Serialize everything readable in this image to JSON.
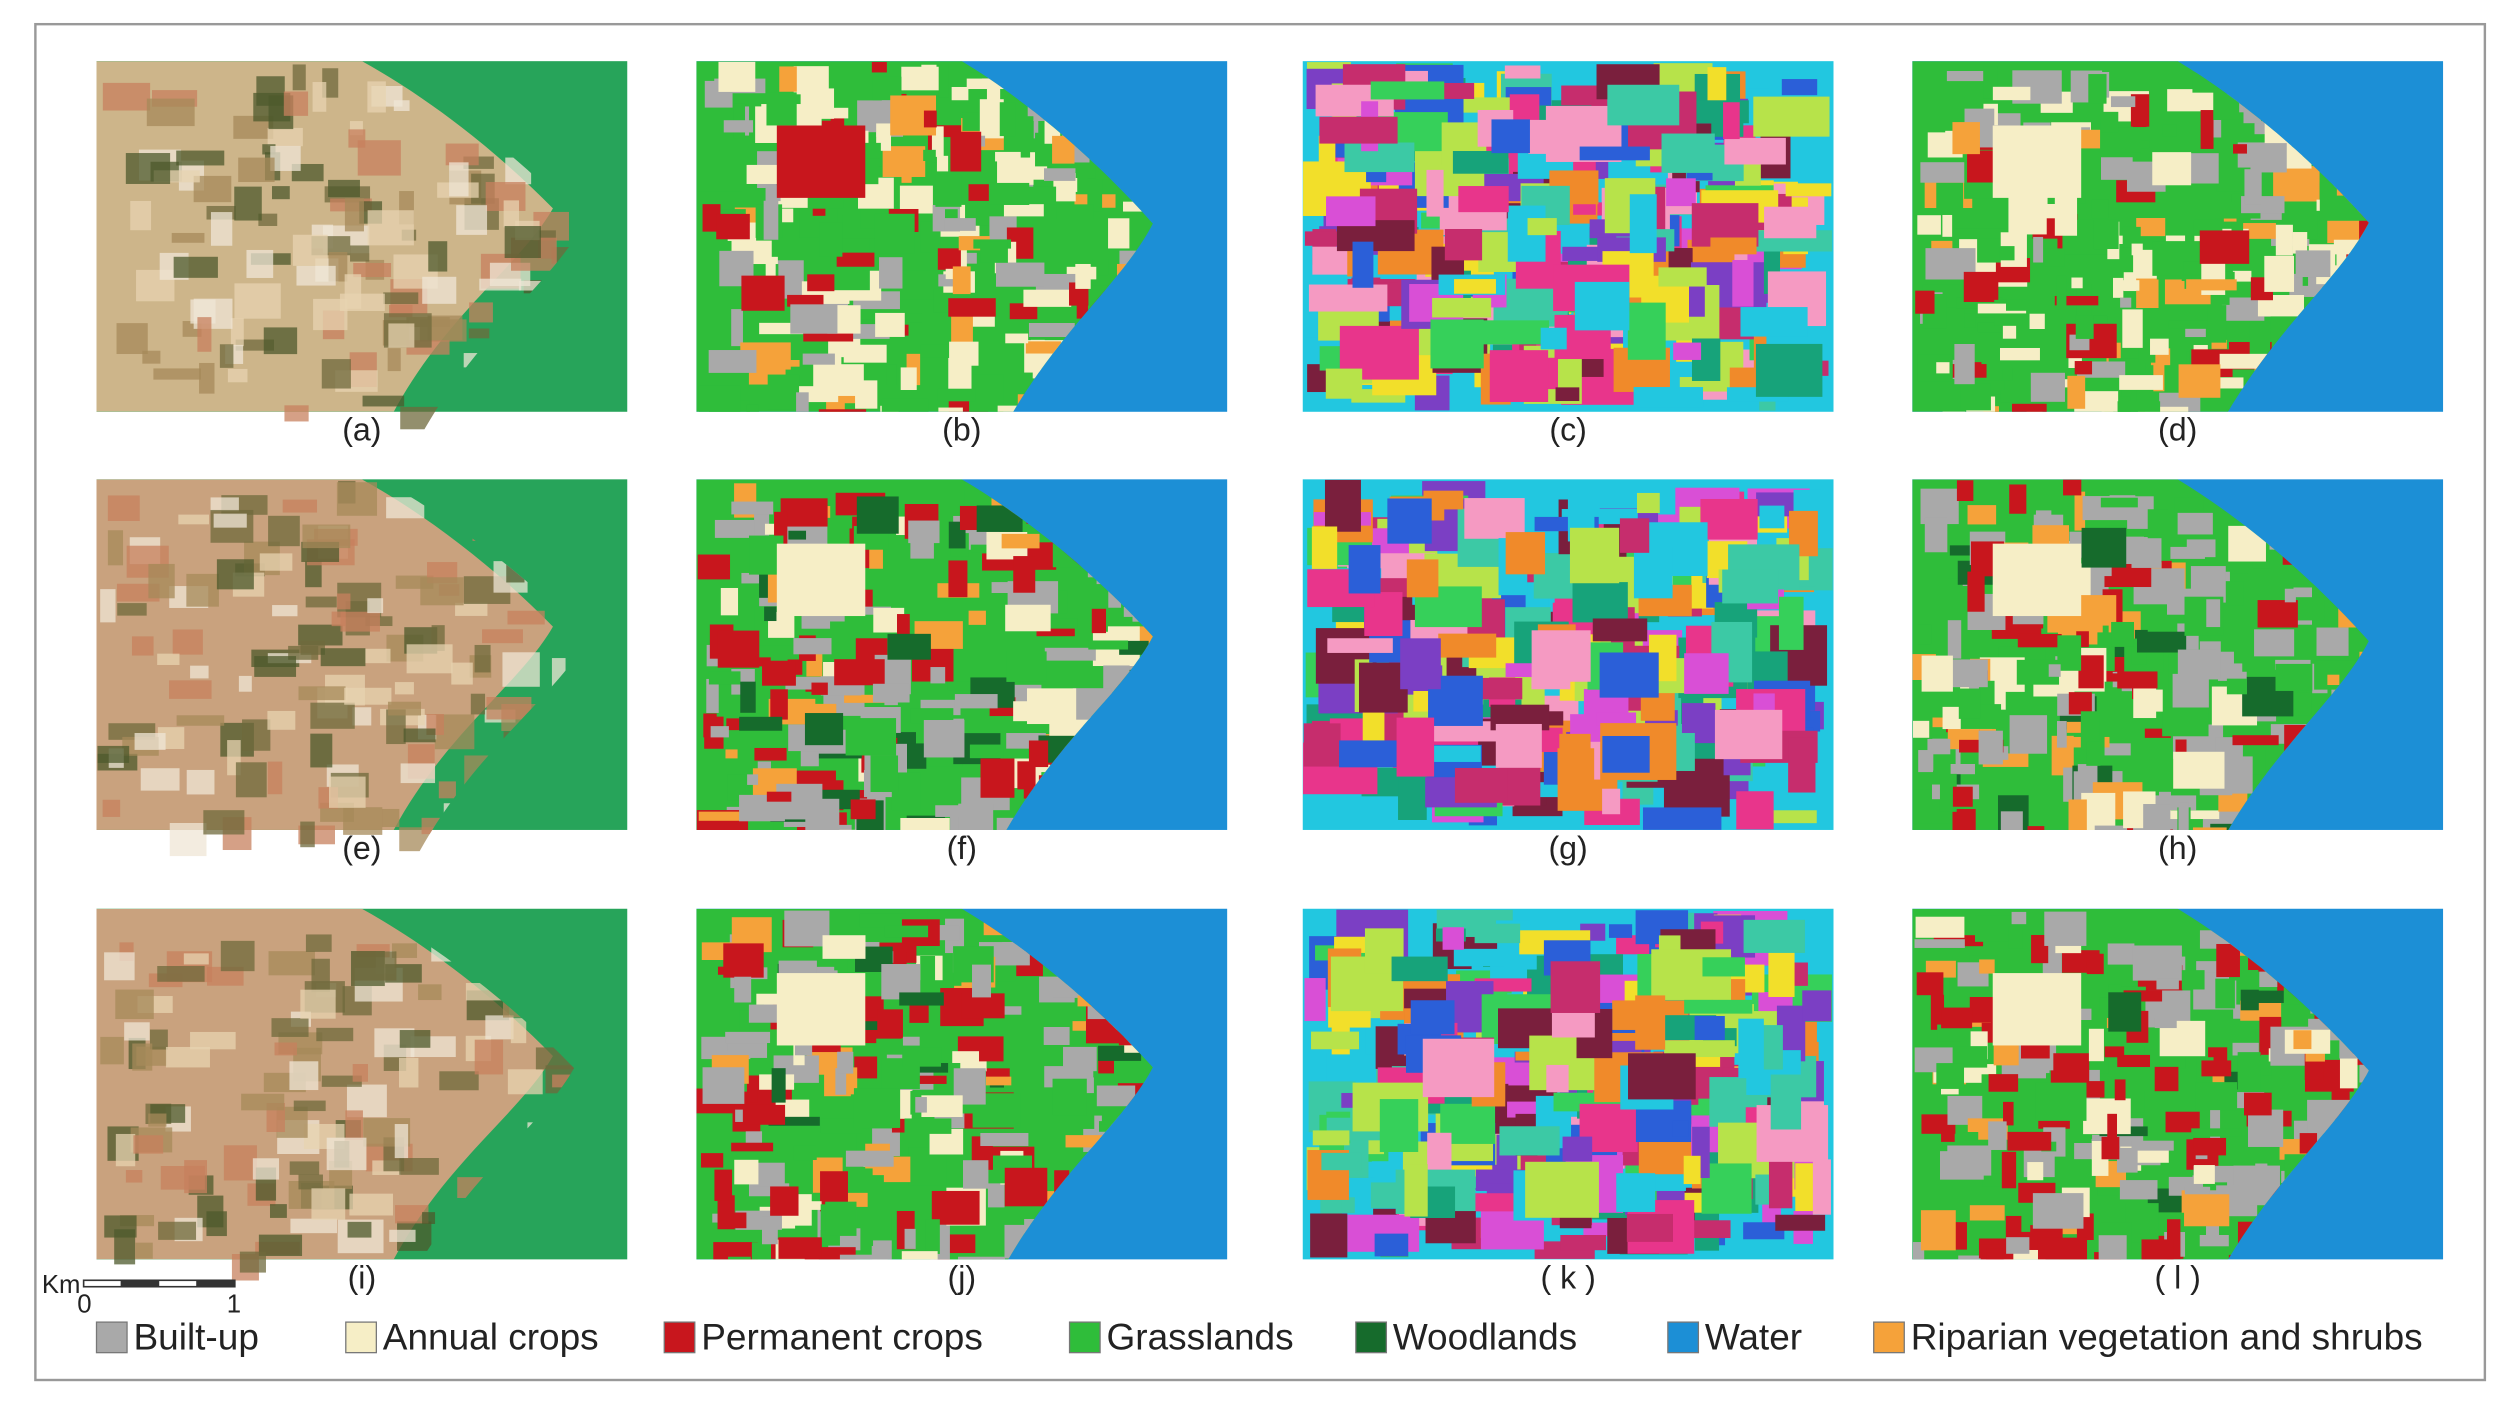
{
  "panels": [
    {
      "label": "(a)"
    },
    {
      "label": "(b)"
    },
    {
      "label": "(c)"
    },
    {
      "label": "(d)"
    },
    {
      "label": "(e)"
    },
    {
      "label": "(f)"
    },
    {
      "label": "(g)"
    },
    {
      "label": "(h)"
    },
    {
      "label": "(i)"
    },
    {
      "label": "(j)"
    },
    {
      "label": "( k )"
    },
    {
      "label": "( l )"
    }
  ],
  "scale_bar": {
    "unit": "Km",
    "start": "0",
    "end": "1"
  },
  "legend": [
    "Built-up",
    "Annual crops",
    "Permanent crops",
    "Grasslands",
    "Woodlands",
    "Water",
    "Riparian vegetation and shrubs"
  ]
}
